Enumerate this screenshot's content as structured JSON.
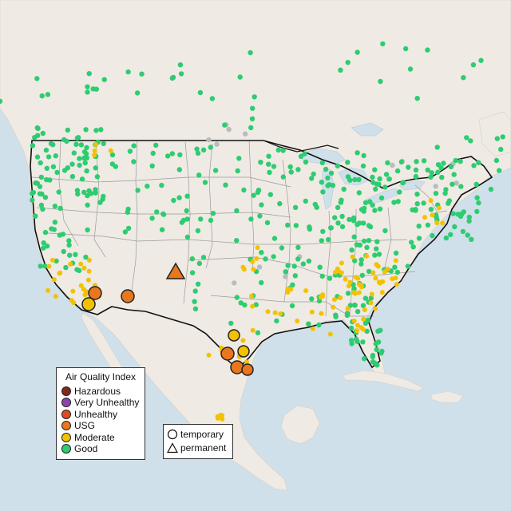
{
  "legend": {
    "title": "Air Quality Index",
    "items": [
      {
        "label": "Hazardous",
        "color": "#7e2a1c"
      },
      {
        "label": "Very Unhealthy",
        "color": "#8e44ad"
      },
      {
        "label": "Unhealthy",
        "color": "#e04a2a"
      },
      {
        "label": "USG",
        "color": "#e8771e"
      },
      {
        "label": "Moderate",
        "color": "#f2c200"
      },
      {
        "label": "Good",
        "color": "#2ecc71"
      }
    ]
  },
  "site_type_legend": {
    "items": [
      {
        "label": "temporary",
        "shape": "circle"
      },
      {
        "label": "permanent",
        "shape": "triangle"
      }
    ]
  },
  "colors": {
    "water": "#cfe0ea",
    "land": "#efeae4",
    "good": "#2ecc71",
    "moderate": "#f2c200",
    "usg": "#e8771e",
    "no_data": "#b8bcc0"
  }
}
